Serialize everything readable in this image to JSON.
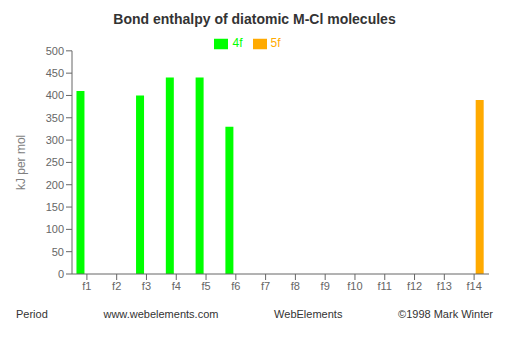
{
  "chart_data": {
    "type": "bar",
    "title": "Bond enthalpy of diatomic M-Cl molecules",
    "y_label": "kJ per mol",
    "categories": [
      "f1",
      "f2",
      "f3",
      "f4",
      "f5",
      "f6",
      "f7",
      "f8",
      "f9",
      "f10",
      "f11",
      "f12",
      "f13",
      "f14"
    ],
    "series": [
      {
        "name": "4f",
        "color": "#00ff00",
        "values": [
          410,
          0,
          400,
          440,
          440,
          330,
          0,
          0,
          0,
          0,
          0,
          0,
          0,
          0
        ]
      },
      {
        "name": "5f",
        "color": "#ffaa00",
        "values": [
          0,
          0,
          0,
          0,
          0,
          0,
          0,
          0,
          0,
          0,
          0,
          0,
          0,
          390
        ]
      }
    ],
    "ylim": [
      0,
      500
    ],
    "yticks": [
      0,
      50,
      100,
      150,
      200,
      250,
      300,
      350,
      400,
      450,
      500
    ],
    "grid": false,
    "legend": "top",
    "annotations": [
      "Period",
      "www.webelements.com",
      "WebElements",
      "©1998 Mark Winter"
    ]
  }
}
